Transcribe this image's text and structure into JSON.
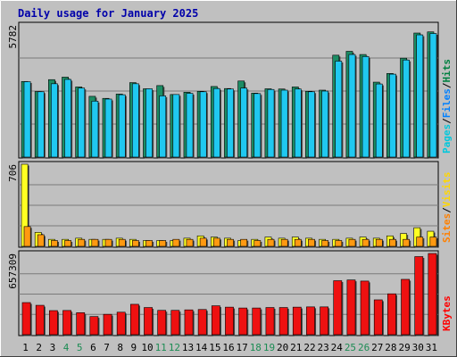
{
  "chart_data": {
    "type": "bar",
    "title": "Daily usage for January 2025",
    "categories": [
      "1",
      "2",
      "3",
      "4",
      "5",
      "6",
      "7",
      "8",
      "9",
      "10",
      "11",
      "12",
      "13",
      "14",
      "15",
      "16",
      "17",
      "18",
      "19",
      "20",
      "21",
      "22",
      "23",
      "24",
      "25",
      "26",
      "27",
      "28",
      "29",
      "30",
      "31"
    ],
    "weekend_days": [
      "4",
      "5",
      "11",
      "12",
      "18",
      "19",
      "25",
      "26"
    ],
    "panels": [
      {
        "id": "hits-files-pages",
        "ymax_label": "5782",
        "ylim": [
          0,
          5782
        ],
        "legend": [
          {
            "name": "Pages",
            "color": "#00c8dc"
          },
          {
            "name": "Files",
            "color": "#0080ff"
          },
          {
            "name": "Hits",
            "color": "#008040"
          }
        ],
        "series": [
          {
            "name": "Hits",
            "color": "#1c8c64",
            "values": [
              3310,
              2870,
              3390,
              3500,
              3070,
              2660,
              2570,
              2760,
              3260,
              2990,
              3130,
              2740,
              2840,
              2880,
              3090,
              3000,
              3330,
              2800,
              2990,
              2980,
              3070,
              2880,
              2930,
              4460,
              4630,
              4490,
              3280,
              3660,
              4330,
              5430,
              5480
            ]
          },
          {
            "name": "Pages",
            "color": "#20c8f0",
            "values": [
              3300,
              2860,
              3210,
              3400,
              3020,
              2450,
              2540,
              2730,
              3210,
              2990,
              2680,
              2740,
              2790,
              2860,
              3000,
              2980,
              3020,
              2780,
              2960,
              2930,
              2980,
              2860,
              2890,
              4200,
              4490,
              4400,
              3200,
              3630,
              4250,
              5350,
              5410
            ]
          }
        ]
      },
      {
        "id": "visits-sites",
        "ymax_label": "706",
        "ylim": [
          0,
          706
        ],
        "legend": [
          {
            "name": "Sites",
            "color": "#ff8000"
          },
          {
            "name": "Visits",
            "color": "#ffd700"
          }
        ],
        "series": [
          {
            "name": "Visits",
            "color": "#ffff22",
            "values": [
              706,
              120,
              60,
              60,
              70,
              60,
              60,
              70,
              60,
              50,
              50,
              50,
              70,
              90,
              80,
              70,
              50,
              60,
              80,
              70,
              80,
              70,
              60,
              60,
              70,
              80,
              70,
              90,
              110,
              160,
              130
            ]
          },
          {
            "name": "Sites",
            "color": "#ff9911",
            "values": [
              170,
              100,
              50,
              50,
              60,
              60,
              60,
              60,
              50,
              50,
              50,
              60,
              60,
              70,
              70,
              60,
              60,
              50,
              60,
              60,
              60,
              60,
              50,
              50,
              60,
              60,
              60,
              60,
              60,
              80,
              80
            ]
          }
        ]
      },
      {
        "id": "kbytes",
        "ymax_label": "657309",
        "ylim": [
          0,
          657309
        ],
        "legend": [
          {
            "name": "KBytes",
            "color": "#ff0000"
          }
        ],
        "series": [
          {
            "name": "KBytes",
            "color": "#ee1111",
            "values": [
              260000,
              238000,
              195000,
              196000,
              178000,
              147000,
              165000,
              182000,
              246000,
              220000,
              197000,
              197000,
              201000,
              204000,
              234000,
              223000,
              216000,
              216000,
              220000,
              220000,
              223000,
              225000,
              225000,
              437000,
              443000,
              434000,
              282000,
              331000,
              448000,
              632000,
              657309
            ]
          }
        ]
      }
    ]
  }
}
